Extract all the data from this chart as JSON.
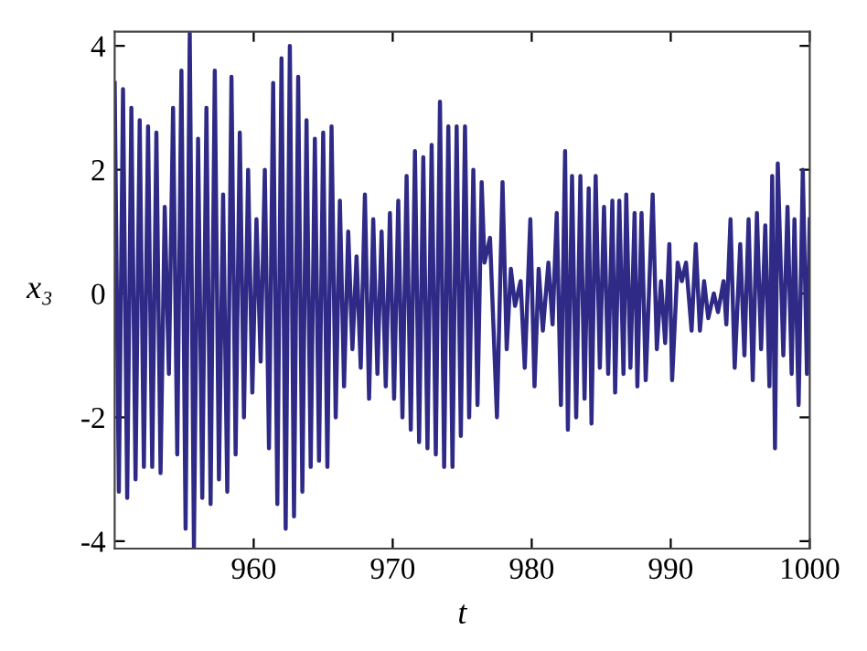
{
  "chart_data": {
    "type": "line",
    "xlabel": "t",
    "ylabel": "x₃",
    "xlim": [
      950,
      1000
    ],
    "ylim": [
      -4.12,
      4.23
    ],
    "xticks": [
      960,
      970,
      980,
      990,
      1000
    ],
    "yticks": [
      -4,
      -2,
      0,
      2,
      4
    ],
    "grid": false,
    "series": [
      {
        "color": "#2e2a86",
        "x": [
          950.0,
          950.3,
          950.6,
          950.9,
          951.2,
          951.5,
          951.8,
          952.1,
          952.4,
          952.7,
          953.0,
          953.3,
          953.6,
          953.9,
          954.2,
          954.5,
          954.8,
          955.1,
          955.4,
          955.7,
          956.0,
          956.3,
          956.6,
          956.9,
          957.2,
          957.5,
          957.8,
          958.1,
          958.4,
          958.7,
          959.0,
          959.3,
          959.6,
          959.9,
          960.2,
          960.5,
          960.8,
          961.1,
          961.4,
          961.7,
          962.0,
          962.3,
          962.6,
          962.9,
          963.2,
          963.5,
          963.8,
          964.1,
          964.4,
          964.7,
          965.0,
          965.3,
          965.6,
          965.9,
          966.2,
          966.5,
          966.8,
          967.1,
          967.4,
          967.7,
          968.0,
          968.3,
          968.6,
          968.9,
          969.2,
          969.5,
          969.8,
          970.1,
          970.4,
          970.7,
          971.0,
          971.3,
          971.6,
          971.9,
          972.2,
          972.5,
          972.8,
          973.1,
          973.4,
          973.7,
          974.0,
          974.3,
          974.6,
          974.9,
          975.2,
          975.5,
          975.8,
          976.1,
          976.4,
          976.6,
          977.0,
          977.5,
          977.9,
          978.2,
          978.5,
          978.8,
          979.2,
          979.5,
          979.9,
          980.2,
          980.5,
          980.8,
          981.2,
          981.5,
          981.8,
          982.1,
          982.4,
          982.6,
          982.9,
          983.2,
          983.5,
          983.8,
          984.1,
          984.3,
          984.6,
          984.9,
          985.2,
          985.5,
          985.8,
          986.0,
          986.3,
          986.6,
          986.8,
          987.1,
          987.4,
          987.6,
          987.9,
          988.2,
          988.7,
          989.0,
          989.3,
          989.6,
          989.9,
          990.1,
          990.5,
          990.8,
          991.1,
          991.5,
          991.8,
          992.1,
          992.4,
          992.7,
          993.1,
          993.4,
          993.8,
          994.0,
          994.3,
          994.6,
          995.0,
          995.3,
          995.6,
          995.9,
          996.2,
          996.5,
          996.8,
          997.1,
          997.3,
          997.5,
          997.7,
          998.1,
          998.4,
          998.7,
          998.9,
          999.2,
          999.5,
          999.8,
          1000.0
        ],
        "values": [
          3.4,
          -3.2,
          3.3,
          -3.3,
          3.0,
          -3.0,
          2.8,
          -2.8,
          2.7,
          -2.8,
          2.6,
          -2.9,
          1.4,
          -1.3,
          3.0,
          -2.6,
          3.6,
          -3.8,
          4.2,
          -4.1,
          2.5,
          -3.3,
          3.0,
          -3.4,
          3.6,
          -3.0,
          1.6,
          -3.2,
          3.5,
          -2.6,
          2.6,
          -2.0,
          2.0,
          -1.6,
          1.2,
          -1.1,
          2.0,
          -2.5,
          3.4,
          -3.4,
          3.8,
          -3.8,
          4.0,
          -3.6,
          3.5,
          -3.2,
          2.8,
          -2.8,
          2.5,
          -2.7,
          2.6,
          -2.8,
          2.7,
          -2.0,
          1.5,
          -1.5,
          1.0,
          -0.9,
          0.6,
          -1.2,
          1.6,
          -1.7,
          1.2,
          -1.3,
          1.0,
          -1.5,
          1.3,
          -1.7,
          1.5,
          -2.0,
          1.9,
          -2.2,
          2.3,
          -2.4,
          2.2,
          -2.5,
          2.4,
          -2.6,
          3.1,
          -2.8,
          2.7,
          -2.8,
          2.7,
          -2.3,
          2.7,
          -2.0,
          2.0,
          -1.8,
          1.8,
          0.5,
          0.9,
          -2.0,
          1.8,
          -0.9,
          0.4,
          -0.2,
          0.2,
          -1.2,
          1.2,
          -1.5,
          0.4,
          -0.6,
          0.5,
          -0.5,
          1.3,
          -1.8,
          2.3,
          -2.2,
          1.9,
          -2.0,
          1.9,
          -1.7,
          1.7,
          -2.1,
          1.9,
          -1.2,
          1.4,
          -1.3,
          1.5,
          -1.6,
          1.5,
          -1.3,
          1.6,
          -1.2,
          1.3,
          -1.5,
          1.3,
          -1.4,
          1.6,
          -0.9,
          0.2,
          -0.8,
          0.8,
          -1.4,
          0.5,
          0.2,
          0.5,
          -0.6,
          0.8,
          -0.6,
          0.2,
          -0.4,
          0.0,
          -0.3,
          0.2,
          -0.5,
          1.2,
          -1.2,
          0.8,
          -1.0,
          1.2,
          -1.4,
          1.3,
          -0.9,
          1.1,
          -1.5,
          1.9,
          -2.5,
          2.1,
          -1.0,
          1.4,
          -1.3,
          1.2,
          -1.8,
          2.0,
          -1.3,
          1.2
        ]
      }
    ]
  }
}
